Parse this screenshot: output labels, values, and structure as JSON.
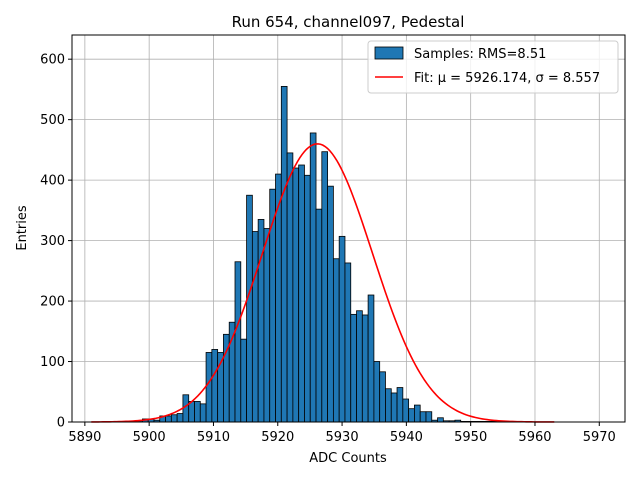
{
  "chart_data": {
    "type": "bar",
    "title": "Run 654, channel097, Pedestal",
    "xlabel": "ADC Counts",
    "ylabel": "Entries",
    "xlim": [
      5888,
      5974
    ],
    "ylim": [
      0,
      640
    ],
    "xticks": [
      5890,
      5900,
      5910,
      5920,
      5930,
      5940,
      5950,
      5960,
      5970
    ],
    "yticks": [
      0,
      100,
      200,
      300,
      400,
      500,
      600
    ],
    "grid": true,
    "legend_position": "top-right",
    "colors": {
      "bar": "#1f77b4",
      "bar_edge": "#000000",
      "fit": "#ff0000",
      "grid": "#b0b0b0"
    },
    "bin_width": 0.9,
    "series": [
      {
        "name": "Samples: RMS=8.51",
        "kind": "histogram",
        "x": [
          5896.7,
          5897.6,
          5898.5,
          5899.4,
          5900.3,
          5901.2,
          5902.1,
          5903.0,
          5903.9,
          5904.8,
          5905.7,
          5906.6,
          5907.5,
          5908.4,
          5909.3,
          5910.2,
          5911.1,
          5912.0,
          5912.9,
          5913.8,
          5914.7,
          5915.6,
          5916.5,
          5917.4,
          5918.3,
          5919.2,
          5920.1,
          5921.0,
          5921.9,
          5922.8,
          5923.7,
          5924.6,
          5925.5,
          5926.4,
          5927.3,
          5928.2,
          5929.1,
          5930.0,
          5930.9,
          5931.8,
          5932.7,
          5933.6,
          5934.5,
          5935.4,
          5936.3,
          5937.2,
          5938.1,
          5939.0,
          5939.9,
          5940.8,
          5941.7,
          5942.6,
          5943.5,
          5944.4,
          5945.3,
          5946.2,
          5947.1,
          5948.0,
          5948.9,
          5949.8,
          5950.7,
          5951.6,
          5952.5,
          5953.4,
          5954.3
        ],
        "values": [
          1,
          1,
          2,
          5,
          5,
          3,
          10,
          10,
          12,
          14,
          45,
          34,
          34,
          30,
          115,
          120,
          115,
          145,
          165,
          265,
          137,
          375,
          315,
          335,
          320,
          385,
          410,
          555,
          445,
          420,
          425,
          408,
          478,
          352,
          447,
          390,
          270,
          307,
          263,
          178,
          184,
          177,
          210,
          100,
          83,
          55,
          48,
          57,
          38,
          22,
          28,
          17,
          17,
          3,
          7,
          2,
          2,
          3,
          1,
          1,
          1,
          1,
          1,
          1,
          1
        ]
      },
      {
        "name": "Fit: μ = 5926.174, σ = 8.557",
        "kind": "gaussian",
        "mu": 5926.174,
        "sigma": 8.557,
        "amplitude": 460,
        "x_range": [
          5891,
          5963
        ]
      }
    ]
  }
}
